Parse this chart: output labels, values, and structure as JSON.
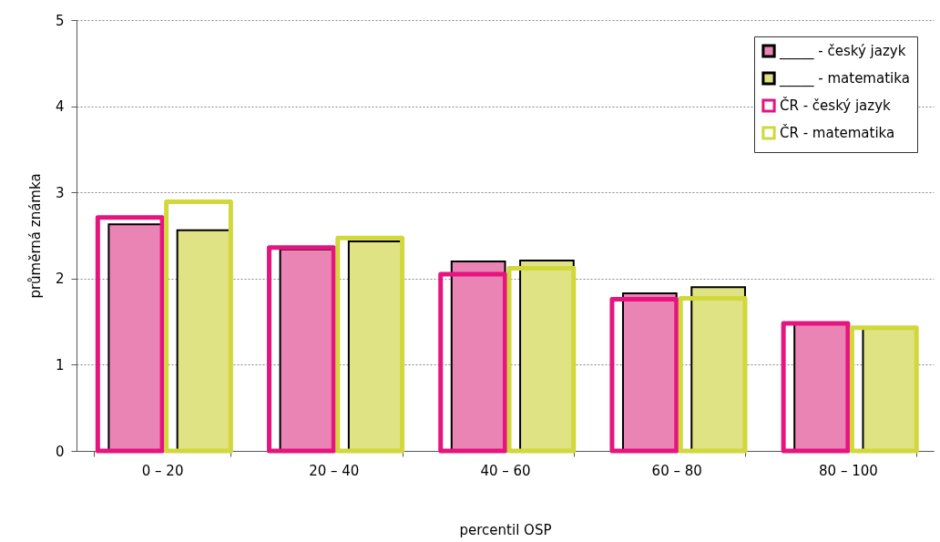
{
  "chart_data": {
    "type": "bar",
    "xlabel": "percentil OSP",
    "ylabel": "průměrná známka",
    "categories": [
      "0 – 20",
      "20 – 40",
      "40 – 60",
      "60 – 80",
      "80 – 100"
    ],
    "series": [
      {
        "name": "_____ - český jazyk",
        "color": "#e984b4",
        "values": [
          2.63,
          2.34,
          2.2,
          1.83,
          1.47
        ]
      },
      {
        "name": "_____ - matematika",
        "color": "#dfe383",
        "values": [
          2.56,
          2.43,
          2.21,
          1.9,
          1.42
        ]
      },
      {
        "name": "ČR - český jazyk",
        "color": "#e6147f",
        "values": [
          2.71,
          2.36,
          2.05,
          1.76,
          1.48
        ]
      },
      {
        "name": "ČR  - matematika",
        "color": "#d0d83c",
        "values": [
          2.89,
          2.47,
          2.12,
          1.77,
          1.43
        ]
      }
    ],
    "ylim": [
      0,
      5
    ],
    "yticks": [
      0,
      1,
      2,
      3,
      4,
      5
    ],
    "grid": "y",
    "legend": "top right"
  }
}
